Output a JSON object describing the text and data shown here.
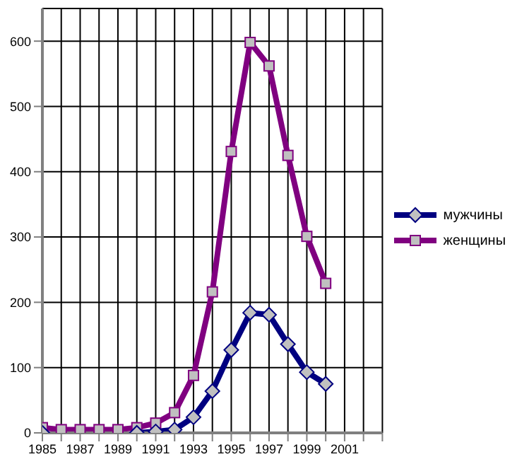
{
  "chart_data": {
    "type": "line",
    "x": [
      1985,
      1986,
      1987,
      1988,
      1989,
      1990,
      1991,
      1992,
      1993,
      1994,
      1995,
      1996,
      1997,
      1998,
      1999,
      2000
    ],
    "series": [
      {
        "name": "мужчины",
        "color": "#000080",
        "marker": "diamond",
        "values": [
          0,
          null,
          null,
          null,
          null,
          0,
          2,
          5,
          24,
          64,
          127,
          184,
          181,
          136,
          93,
          75
        ]
      },
      {
        "name": "женщины",
        "color": "#800080",
        "marker": "square",
        "values": [
          8,
          5,
          5,
          5,
          5,
          8,
          15,
          31,
          88,
          216,
          431,
          598,
          562,
          425,
          301,
          229
        ]
      }
    ],
    "xlim": [
      1985,
      2003
    ],
    "xticks": [
      1985,
      {
        "value": 1986,
        "label": null
      },
      1987,
      {
        "value": 1988,
        "label": null
      },
      1989,
      {
        "value": 1990,
        "label": null
      },
      1991,
      {
        "value": 1992,
        "label": null
      },
      1993,
      {
        "value": 1994,
        "label": null
      },
      1995,
      {
        "value": 1996,
        "label": null
      },
      1997,
      {
        "value": 1998,
        "label": null
      },
      1999,
      {
        "value": 2000,
        "label": null
      },
      2001,
      {
        "value": 2002,
        "label": null
      },
      {
        "value": 2003,
        "label": null
      }
    ],
    "ylim": [
      0,
      650
    ],
    "yticks": [
      0,
      100,
      200,
      300,
      400,
      500,
      600
    ],
    "grid": true,
    "legend": "right"
  }
}
